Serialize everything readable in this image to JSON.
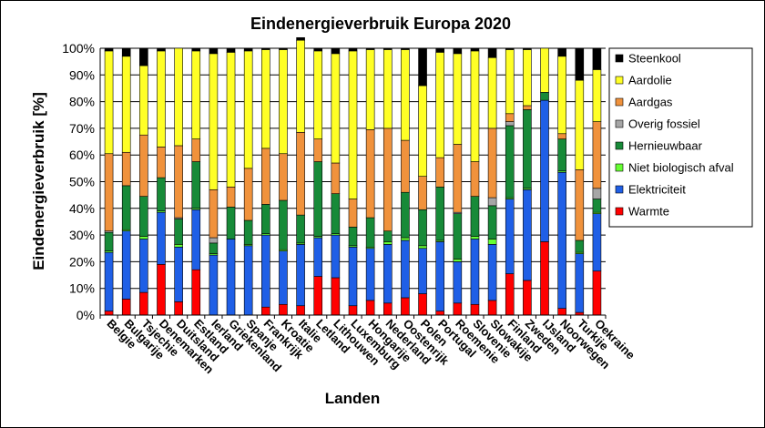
{
  "chart_data": {
    "type": "bar",
    "stacked": true,
    "title": "Eindenergieverbruik Europa 2020",
    "xlabel": "Landen",
    "ylabel": "Eindenergieverbruik [%]",
    "ylim": [
      0,
      100
    ],
    "yticks": [
      "0%",
      "10%",
      "20%",
      "30%",
      "40%",
      "50%",
      "60%",
      "70%",
      "80%",
      "90%",
      "100%"
    ],
    "grid": true,
    "legend_position": "right",
    "categories": [
      "Belgie",
      "Bulgarije",
      "Tsjechie",
      "Denemarken",
      "Duitsland",
      "Estland",
      "Ierland",
      "Griekenland",
      "Spanje",
      "Frankrijk",
      "Kroatie",
      "Italie",
      "Letland",
      "Lithouwen",
      "Luxemburg",
      "Hongarije",
      "Nederland",
      "Oostenrijk",
      "Polen",
      "Portugal",
      "Roemenie",
      "Slovenie",
      "Slowakije",
      "Finland",
      "Zweden",
      "IJsland",
      "Noorwegen",
      "Turkije",
      "Oekraine"
    ],
    "series": [
      {
        "name": "Warmte",
        "color": "#ff0000",
        "values": [
          1.5,
          6,
          8.5,
          19,
          5,
          17,
          0,
          0,
          0,
          3,
          4,
          3.5,
          14.5,
          14,
          3.5,
          5.5,
          4.5,
          6.5,
          8,
          1.5,
          4.5,
          4,
          5.5,
          15.5,
          13,
          27.5,
          2.5,
          1,
          16.5
        ]
      },
      {
        "name": "Elektriciteit",
        "color": "#1f5fe6",
        "values": [
          22,
          25.5,
          20,
          19.5,
          20.5,
          22.5,
          22.5,
          28.5,
          26,
          27,
          20,
          23,
          14.5,
          16,
          22,
          19.5,
          22,
          21.5,
          17,
          26,
          15.5,
          24.5,
          21,
          28,
          34,
          53,
          51,
          22,
          21.5
        ]
      },
      {
        "name": "Niet biologisch afval",
        "color": "#66ff33",
        "values": [
          0.5,
          0.5,
          1,
          0.5,
          1,
          0.5,
          0.5,
          0,
          0.5,
          0.5,
          0.5,
          0.5,
          0.5,
          0.5,
          0.5,
          0.5,
          1,
          1,
          1,
          0.5,
          1,
          1,
          2,
          0.5,
          0.5,
          0,
          0.5,
          0.5,
          0.5
        ]
      },
      {
        "name": "Hernieuwbaar",
        "color": "#178a38",
        "values": [
          7,
          16.5,
          15,
          12.5,
          9.5,
          17.5,
          4,
          12,
          9,
          11,
          18.5,
          10.5,
          28,
          15,
          7,
          11,
          4,
          17,
          13.5,
          20,
          17,
          15,
          12.5,
          27,
          29.5,
          3,
          12,
          4.5,
          5
        ]
      },
      {
        "name": "Overig fossiel",
        "color": "#a6a6a6",
        "values": [
          0.5,
          0,
          0,
          0,
          0.5,
          0,
          2,
          0,
          0,
          0,
          0,
          0,
          0,
          0,
          0,
          0,
          0,
          0,
          0,
          0,
          0.5,
          0,
          3,
          1.5,
          0,
          0,
          0,
          0,
          4
        ]
      },
      {
        "name": "Aardgas",
        "color": "#f0923c",
        "values": [
          29,
          12.5,
          23,
          11.5,
          27,
          8.5,
          18,
          7.5,
          19.5,
          21,
          17.5,
          31,
          8.5,
          11.5,
          10.5,
          33,
          38.5,
          19.5,
          12.5,
          11,
          25.5,
          13,
          26,
          3,
          1.5,
          0,
          2,
          26.5,
          25
        ]
      },
      {
        "name": "Aardolie",
        "color": "#ffff26",
        "values": [
          38.5,
          36,
          26,
          36,
          36.5,
          33,
          51,
          50.5,
          44,
          37,
          39,
          34.5,
          33,
          41,
          55.5,
          30,
          29.5,
          34,
          34,
          39.5,
          34,
          41.5,
          26.5,
          24,
          21,
          16.5,
          29,
          33.5,
          19.5
        ]
      },
      {
        "name": "Steenkool",
        "color": "#000000",
        "values": [
          1,
          3,
          6.5,
          1,
          0,
          1,
          2,
          1.5,
          1,
          0.5,
          0.5,
          1,
          1,
          2,
          1,
          0.5,
          0.5,
          0.5,
          14,
          1.5,
          2,
          1,
          3.5,
          0.5,
          0.5,
          0,
          3,
          12,
          8
        ]
      }
    ]
  }
}
